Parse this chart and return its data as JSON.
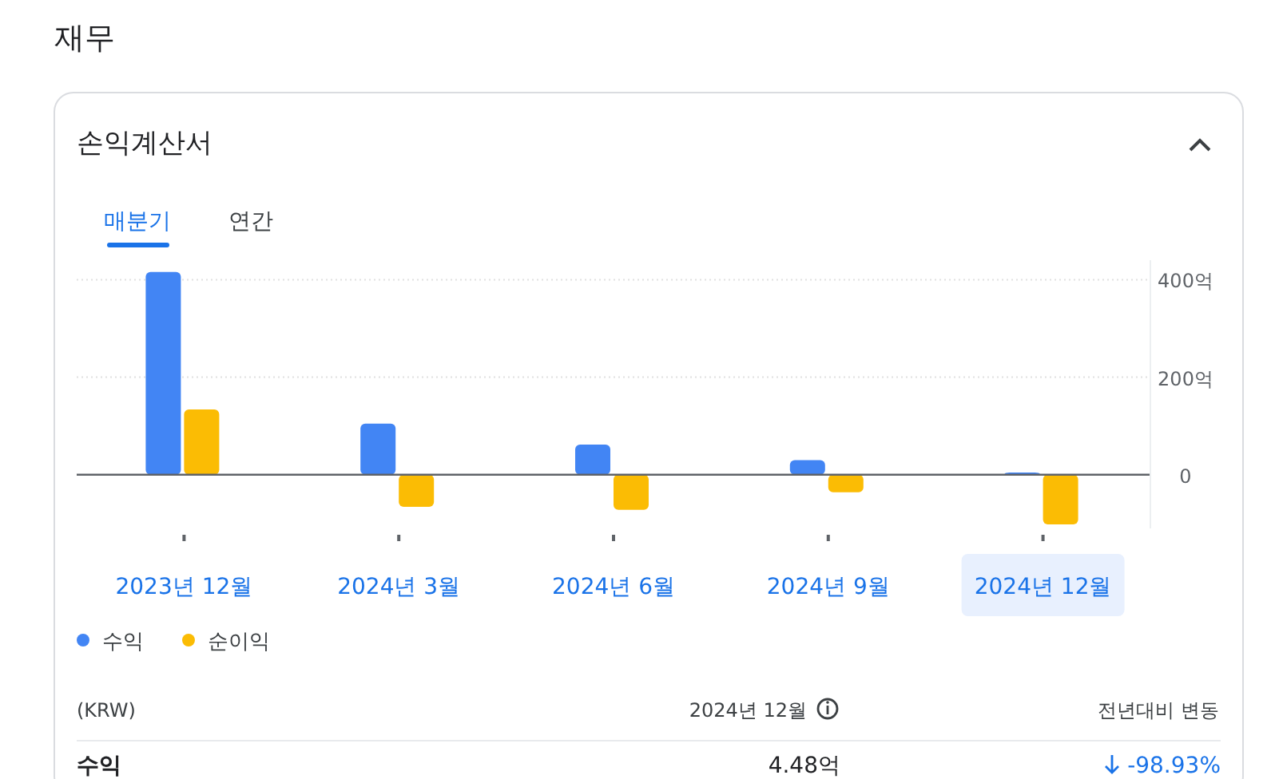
{
  "chart_data": {
    "type": "bar",
    "title": "재무",
    "subtitle": "손익계산서",
    "categories": [
      "2023년 12월",
      "2024년 3월",
      "2024년 6월",
      "2024년 9월",
      "2024년 12월"
    ],
    "series": [
      {
        "name": "수익",
        "color": "#4285f4",
        "values": [
          416,
          105,
          62,
          30,
          4.48
        ]
      },
      {
        "name": "순이익",
        "color": "#fbbc04",
        "values": [
          134,
          -66,
          -72,
          -36,
          -102
        ]
      }
    ],
    "ylim": [
      -110,
      440
    ],
    "yticks": [
      {
        "value": 400,
        "label": "400억"
      },
      {
        "value": 200,
        "label": "200억"
      },
      0
    ],
    "grid": "y",
    "legend": "bottom left",
    "annotations": [
      "매분기",
      "연간",
      "(KRW)",
      "2024년 12월",
      "전년대비 변동",
      "수익",
      "4.48억",
      "-98.93%"
    ]
  }
}
